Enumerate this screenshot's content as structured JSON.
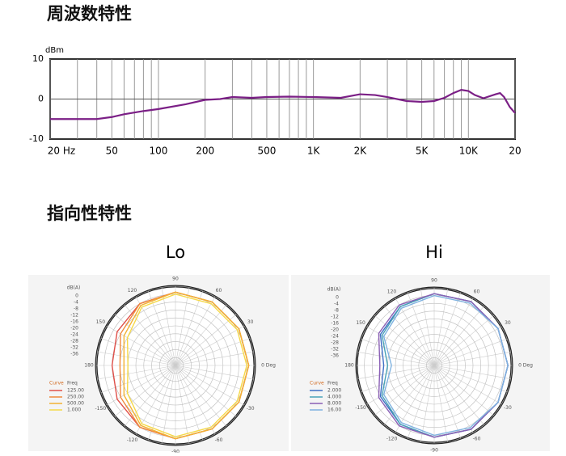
{
  "headings": [
    "周波数特性",
    "指向性特性"
  ],
  "chart_data": [
    {
      "type": "line",
      "ylabel": "dBm",
      "xscale": "log",
      "grid": true,
      "xlim": [
        20,
        20000
      ],
      "ylim": [
        -10,
        10
      ],
      "yticks": [
        -10,
        0,
        10
      ],
      "xticks": [
        {
          "value": 20,
          "label": "20 Hz"
        },
        50,
        100,
        200,
        500,
        {
          "value": 1000,
          "label": "1K"
        },
        {
          "value": 2000,
          "label": "2K"
        },
        {
          "value": 5000,
          "label": "5K"
        },
        {
          "value": 10000,
          "label": "10K"
        },
        {
          "value": 20000,
          "label": "20"
        }
      ],
      "xminor": [
        30,
        40,
        60,
        70,
        80,
        90,
        300,
        400,
        600,
        700,
        800,
        900,
        3000,
        4000,
        6000,
        7000,
        8000,
        9000
      ],
      "x": [
        20,
        30,
        40,
        50,
        60,
        80,
        100,
        150,
        200,
        250,
        300,
        400,
        500,
        700,
        1000,
        1500,
        2000,
        2500,
        3000,
        4000,
        5000,
        6000,
        7000,
        8000,
        9000,
        10000,
        11000,
        12500,
        15000,
        16000,
        17000,
        18500,
        20000
      ],
      "series": [
        {
          "color": "#7b1f86",
          "values": [
            -5,
            -5,
            -5,
            -4.5,
            -3.8,
            -3,
            -2.5,
            -1.3,
            -0.2,
            0,
            0.5,
            0.3,
            0.5,
            0.6,
            0.5,
            0.3,
            1.2,
            1,
            0.5,
            -0.5,
            -0.7,
            -0.5,
            0.3,
            1.5,
            2.3,
            2,
            1,
            0.2,
            1.2,
            1.5,
            0.5,
            -2,
            -3.5
          ]
        }
      ]
    },
    {
      "type": "polar",
      "title": "Lo",
      "rlabel": "dB(A)",
      "legend_header": [
        "Curve",
        "Freq"
      ],
      "rlim": [
        -40,
        0
      ],
      "rticks": [
        0,
        -4,
        -8,
        -12,
        -16,
        -20,
        -24,
        -28,
        -32,
        -36
      ],
      "thetaticks": [
        {
          "value": 0,
          "label": "0 Deg"
        },
        30,
        60,
        90,
        120,
        150,
        180,
        -150,
        -120,
        -90,
        -60,
        -30
      ],
      "theta": [
        -180,
        -150,
        -120,
        -90,
        -60,
        -30,
        0,
        30,
        60,
        90,
        120,
        150,
        180
      ],
      "series": [
        {
          "name": "125.00",
          "color": "#e0504a",
          "values": [
            -8,
            -6,
            -4,
            -3,
            -3,
            -3,
            -3,
            -3,
            -3,
            -3,
            -4,
            -6,
            -8
          ]
        },
        {
          "name": "250.00",
          "color": "#f08a3c",
          "values": [
            -12,
            -8,
            -4,
            -3,
            -3,
            -3,
            -3,
            -3,
            -3,
            -3,
            -4,
            -8,
            -12
          ]
        },
        {
          "name": "500.00",
          "color": "#f2b233",
          "values": [
            -14,
            -10,
            -5,
            -3,
            -3,
            -3,
            -3,
            -3,
            -3,
            -3,
            -5,
            -10,
            -14
          ]
        },
        {
          "name": "1.000",
          "color": "#f5d94a",
          "values": [
            -16,
            -12,
            -6,
            -4,
            -4,
            -4,
            -4,
            -4,
            -4,
            -4,
            -6,
            -12,
            -16
          ]
        }
      ]
    },
    {
      "type": "polar",
      "title": "Hi",
      "rlabel": "dB(A)",
      "legend_header": [
        "Curve",
        "Freq"
      ],
      "rlim": [
        -40,
        0
      ],
      "rticks": [
        0,
        -4,
        -8,
        -12,
        -16,
        -20,
        -24,
        -28,
        -32,
        -36
      ],
      "thetaticks": [
        {
          "value": 0,
          "label": "0 Deg"
        },
        30,
        60,
        90,
        120,
        150,
        180,
        -150,
        -120,
        -90,
        -60,
        -30
      ],
      "theta": [
        -180,
        -150,
        -120,
        -90,
        -60,
        -30,
        0,
        30,
        60,
        90,
        120,
        150,
        180
      ],
      "series": [
        {
          "name": "2.000",
          "color": "#3f6fc4",
          "values": [
            -14,
            -8,
            -5,
            -3,
            -2,
            -2,
            -2,
            -2,
            -2,
            -3,
            -5,
            -8,
            -14
          ]
        },
        {
          "name": "4.000",
          "color": "#4aa3b8",
          "values": [
            -16,
            -9,
            -5,
            -3,
            -2,
            -2,
            -2,
            -2,
            -2,
            -3,
            -5,
            -9,
            -16
          ]
        },
        {
          "name": "8.000",
          "color": "#8a5fb5",
          "values": [
            -12,
            -7,
            -4,
            -3,
            -2,
            -2,
            -2,
            -2,
            -2,
            -3,
            -4,
            -7,
            -12
          ]
        },
        {
          "name": "16.00",
          "color": "#7fb2e0",
          "values": [
            -18,
            -10,
            -6,
            -4,
            -3,
            -2,
            -2,
            -2,
            -3,
            -4,
            -6,
            -10,
            -18
          ]
        }
      ]
    }
  ]
}
